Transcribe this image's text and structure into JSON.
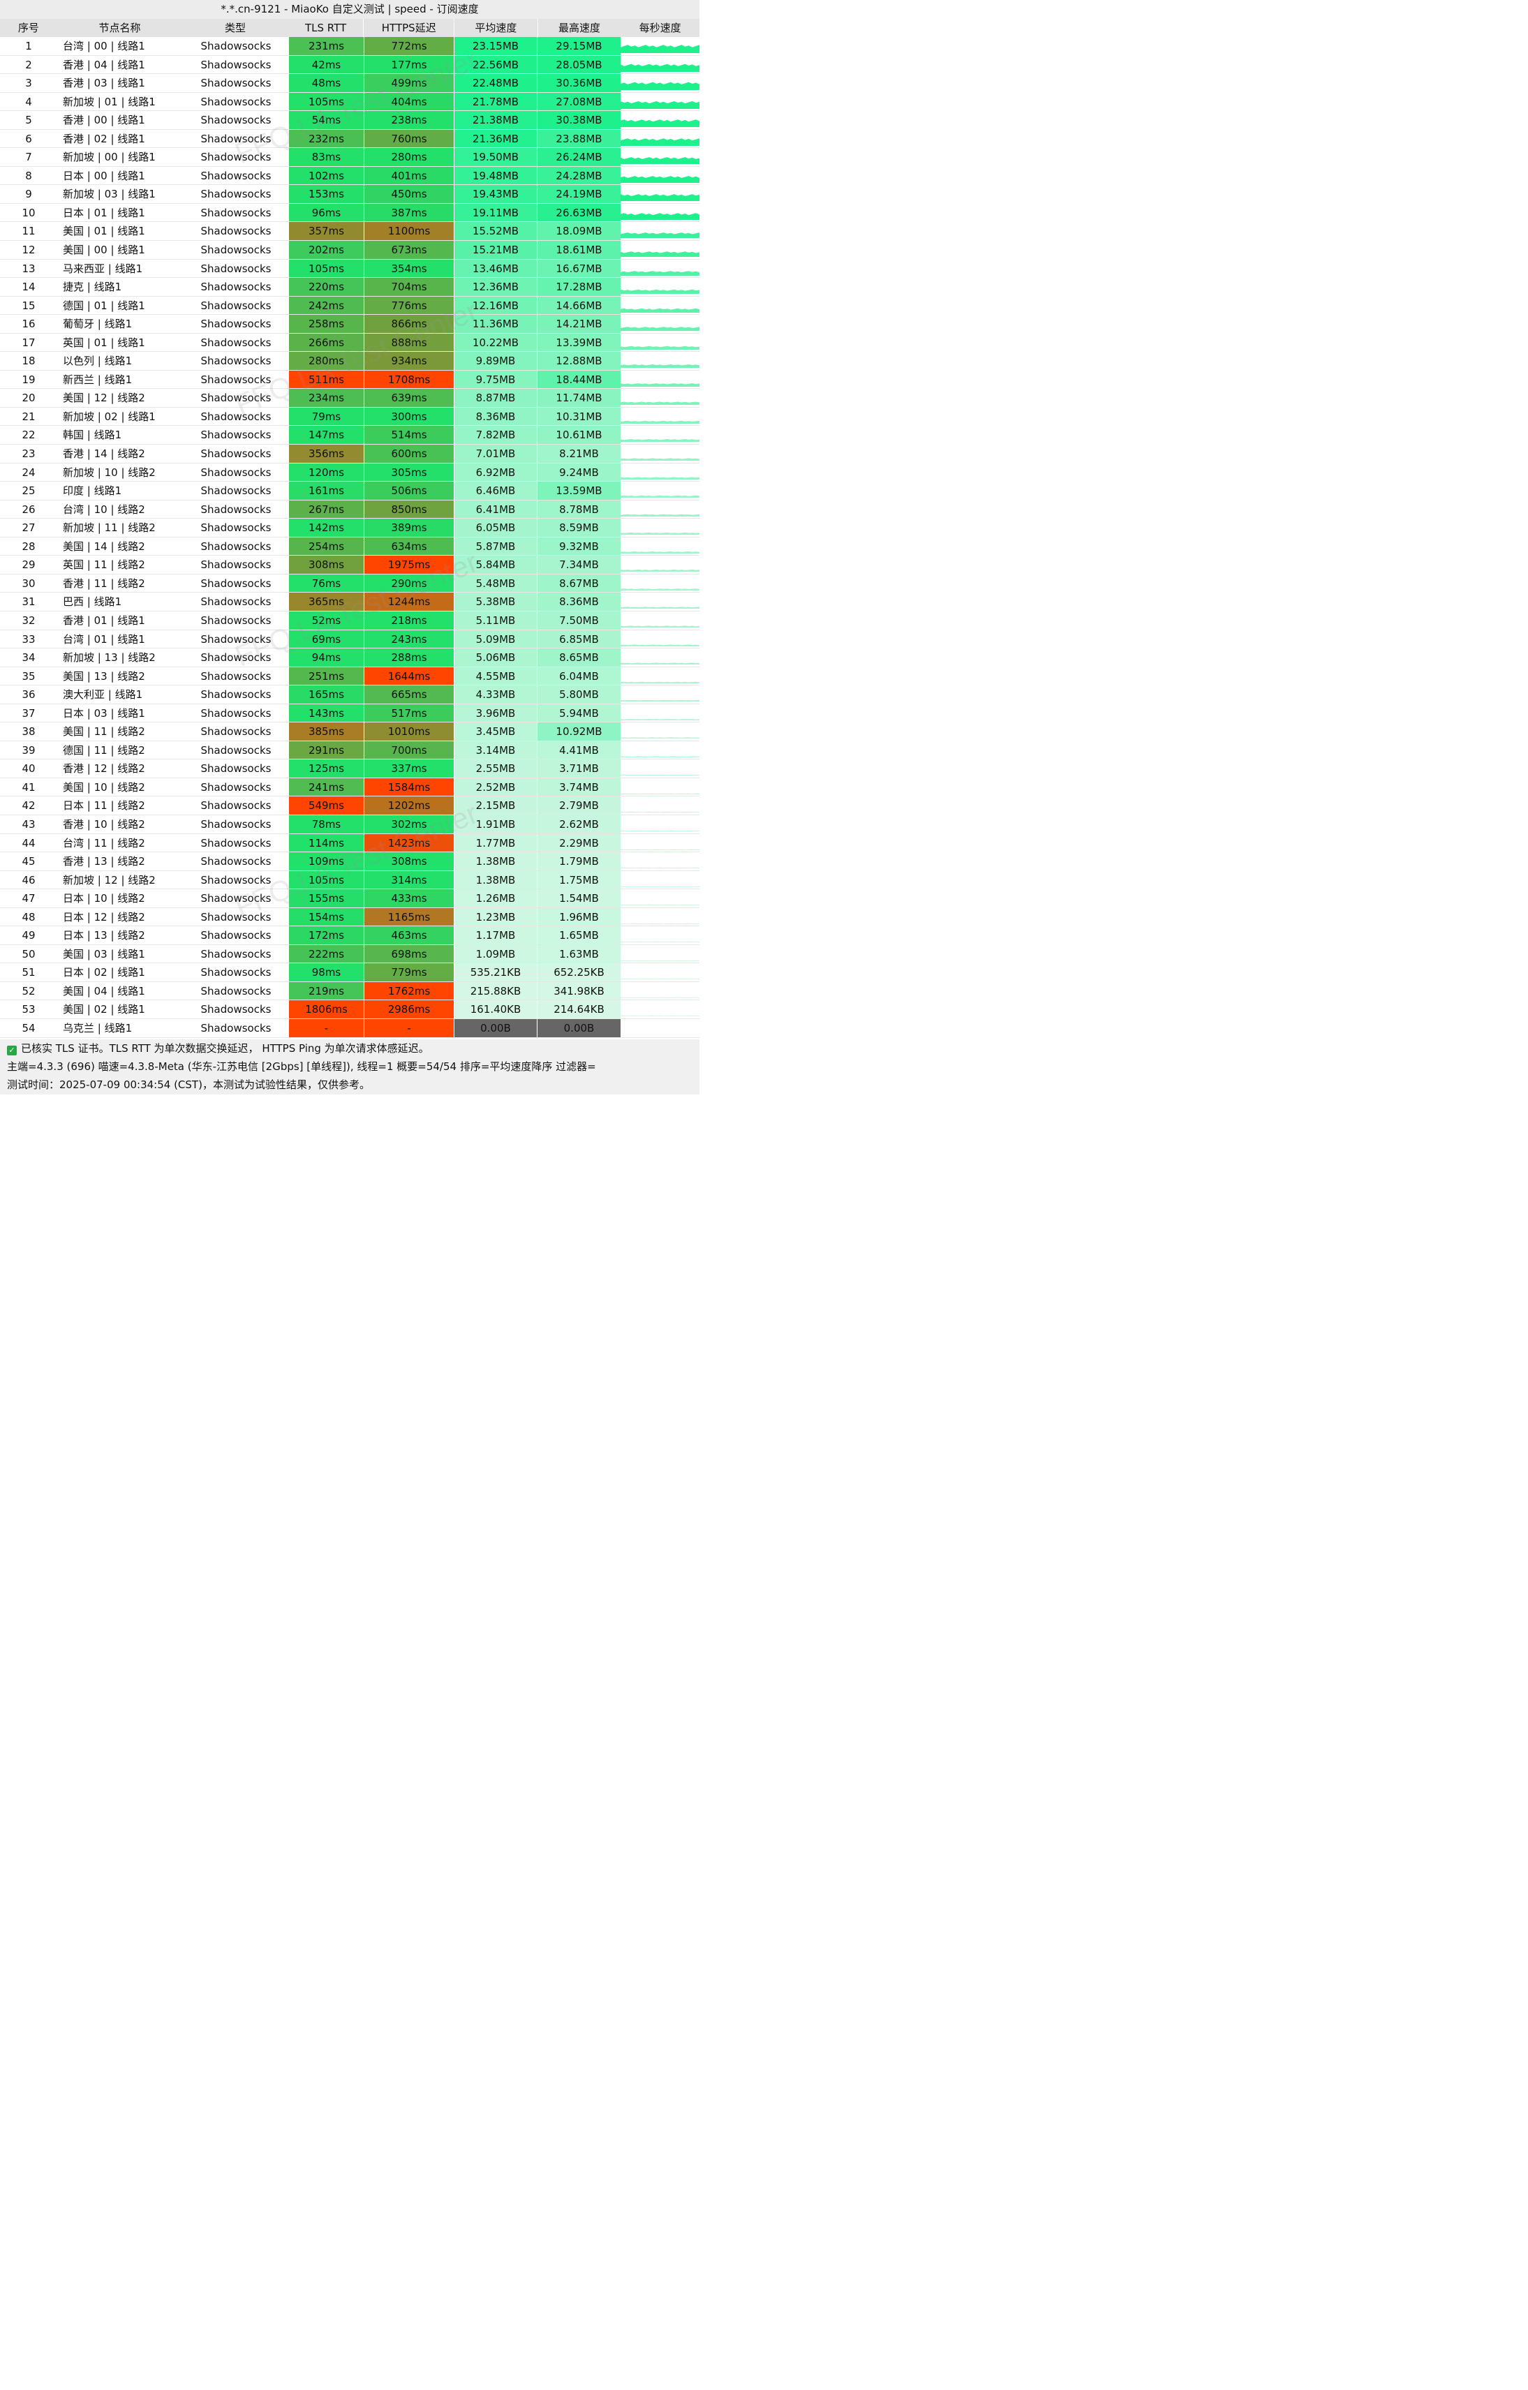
{
  "title": "*.*.cn-9121 - MiaoKo 自定义测试 | speed - 订阅速度",
  "headers": [
    "序号",
    "节点名称",
    "类型",
    "TLS RTT",
    "HTTPS延迟",
    "平均速度",
    "最高速度",
    "每秒速度"
  ],
  "watermark": "FFQ.LA Test Center",
  "rows": [
    {
      "idx": "1",
      "name": "台湾 | 00 | 线路1",
      "type": "Shadowsocks",
      "tls": "231ms",
      "https": "772ms",
      "avg": "23.15MB",
      "max": "29.15MB"
    },
    {
      "idx": "2",
      "name": "香港 | 04 | 线路1",
      "type": "Shadowsocks",
      "tls": "42ms",
      "https": "177ms",
      "avg": "22.56MB",
      "max": "28.05MB"
    },
    {
      "idx": "3",
      "name": "香港 | 03 | 线路1",
      "type": "Shadowsocks",
      "tls": "48ms",
      "https": "499ms",
      "avg": "22.48MB",
      "max": "30.36MB"
    },
    {
      "idx": "4",
      "name": "新加坡 | 01 | 线路1",
      "type": "Shadowsocks",
      "tls": "105ms",
      "https": "404ms",
      "avg": "21.78MB",
      "max": "27.08MB"
    },
    {
      "idx": "5",
      "name": "香港 | 00 | 线路1",
      "type": "Shadowsocks",
      "tls": "54ms",
      "https": "238ms",
      "avg": "21.38MB",
      "max": "30.38MB"
    },
    {
      "idx": "6",
      "name": "香港 | 02 | 线路1",
      "type": "Shadowsocks",
      "tls": "232ms",
      "https": "760ms",
      "avg": "21.36MB",
      "max": "23.88MB"
    },
    {
      "idx": "7",
      "name": "新加坡 | 00 | 线路1",
      "type": "Shadowsocks",
      "tls": "83ms",
      "https": "280ms",
      "avg": "19.50MB",
      "max": "26.24MB"
    },
    {
      "idx": "8",
      "name": "日本 | 00 | 线路1",
      "type": "Shadowsocks",
      "tls": "102ms",
      "https": "401ms",
      "avg": "19.48MB",
      "max": "24.28MB"
    },
    {
      "idx": "9",
      "name": "新加坡 | 03 | 线路1",
      "type": "Shadowsocks",
      "tls": "153ms",
      "https": "450ms",
      "avg": "19.43MB",
      "max": "24.19MB"
    },
    {
      "idx": "10",
      "name": "日本 | 01 | 线路1",
      "type": "Shadowsocks",
      "tls": "96ms",
      "https": "387ms",
      "avg": "19.11MB",
      "max": "26.63MB"
    },
    {
      "idx": "11",
      "name": "美国 | 01 | 线路1",
      "type": "Shadowsocks",
      "tls": "357ms",
      "https": "1100ms",
      "avg": "15.52MB",
      "max": "18.09MB"
    },
    {
      "idx": "12",
      "name": "美国 | 00 | 线路1",
      "type": "Shadowsocks",
      "tls": "202ms",
      "https": "673ms",
      "avg": "15.21MB",
      "max": "18.61MB"
    },
    {
      "idx": "13",
      "name": "马来西亚 | 线路1",
      "type": "Shadowsocks",
      "tls": "105ms",
      "https": "354ms",
      "avg": "13.46MB",
      "max": "16.67MB"
    },
    {
      "idx": "14",
      "name": "捷克 | 线路1",
      "type": "Shadowsocks",
      "tls": "220ms",
      "https": "704ms",
      "avg": "12.36MB",
      "max": "17.28MB"
    },
    {
      "idx": "15",
      "name": "德国 | 01 | 线路1",
      "type": "Shadowsocks",
      "tls": "242ms",
      "https": "776ms",
      "avg": "12.16MB",
      "max": "14.66MB"
    },
    {
      "idx": "16",
      "name": "葡萄牙 | 线路1",
      "type": "Shadowsocks",
      "tls": "258ms",
      "https": "866ms",
      "avg": "11.36MB",
      "max": "14.21MB"
    },
    {
      "idx": "17",
      "name": "英国 | 01 | 线路1",
      "type": "Shadowsocks",
      "tls": "266ms",
      "https": "888ms",
      "avg": "10.22MB",
      "max": "13.39MB"
    },
    {
      "idx": "18",
      "name": "以色列 | 线路1",
      "type": "Shadowsocks",
      "tls": "280ms",
      "https": "934ms",
      "avg": "9.89MB",
      "max": "12.88MB"
    },
    {
      "idx": "19",
      "name": "新西兰 | 线路1",
      "type": "Shadowsocks",
      "tls": "511ms",
      "https": "1708ms",
      "avg": "9.75MB",
      "max": "18.44MB"
    },
    {
      "idx": "20",
      "name": "美国 | 12 | 线路2",
      "type": "Shadowsocks",
      "tls": "234ms",
      "https": "639ms",
      "avg": "8.87MB",
      "max": "11.74MB"
    },
    {
      "idx": "21",
      "name": "新加坡 | 02 | 线路1",
      "type": "Shadowsocks",
      "tls": "79ms",
      "https": "300ms",
      "avg": "8.36MB",
      "max": "10.31MB"
    },
    {
      "idx": "22",
      "name": "韩国 | 线路1",
      "type": "Shadowsocks",
      "tls": "147ms",
      "https": "514ms",
      "avg": "7.82MB",
      "max": "10.61MB"
    },
    {
      "idx": "23",
      "name": "香港 | 14 | 线路2",
      "type": "Shadowsocks",
      "tls": "356ms",
      "https": "600ms",
      "avg": "7.01MB",
      "max": "8.21MB"
    },
    {
      "idx": "24",
      "name": "新加坡 | 10 | 线路2",
      "type": "Shadowsocks",
      "tls": "120ms",
      "https": "305ms",
      "avg": "6.92MB",
      "max": "9.24MB"
    },
    {
      "idx": "25",
      "name": "印度 | 线路1",
      "type": "Shadowsocks",
      "tls": "161ms",
      "https": "506ms",
      "avg": "6.46MB",
      "max": "13.59MB"
    },
    {
      "idx": "26",
      "name": "台湾 | 10 | 线路2",
      "type": "Shadowsocks",
      "tls": "267ms",
      "https": "850ms",
      "avg": "6.41MB",
      "max": "8.78MB"
    },
    {
      "idx": "27",
      "name": "新加坡 | 11 | 线路2",
      "type": "Shadowsocks",
      "tls": "142ms",
      "https": "389ms",
      "avg": "6.05MB",
      "max": "8.59MB"
    },
    {
      "idx": "28",
      "name": "美国 | 14 | 线路2",
      "type": "Shadowsocks",
      "tls": "254ms",
      "https": "634ms",
      "avg": "5.87MB",
      "max": "9.32MB"
    },
    {
      "idx": "29",
      "name": "英国 | 11 | 线路2",
      "type": "Shadowsocks",
      "tls": "308ms",
      "https": "1975ms",
      "avg": "5.84MB",
      "max": "7.34MB"
    },
    {
      "idx": "30",
      "name": "香港 | 11 | 线路2",
      "type": "Shadowsocks",
      "tls": "76ms",
      "https": "290ms",
      "avg": "5.48MB",
      "max": "8.67MB"
    },
    {
      "idx": "31",
      "name": "巴西 | 线路1",
      "type": "Shadowsocks",
      "tls": "365ms",
      "https": "1244ms",
      "avg": "5.38MB",
      "max": "8.36MB"
    },
    {
      "idx": "32",
      "name": "香港 | 01 | 线路1",
      "type": "Shadowsocks",
      "tls": "52ms",
      "https": "218ms",
      "avg": "5.11MB",
      "max": "7.50MB"
    },
    {
      "idx": "33",
      "name": "台湾 | 01 | 线路1",
      "type": "Shadowsocks",
      "tls": "69ms",
      "https": "243ms",
      "avg": "5.09MB",
      "max": "6.85MB"
    },
    {
      "idx": "34",
      "name": "新加坡 | 13 | 线路2",
      "type": "Shadowsocks",
      "tls": "94ms",
      "https": "288ms",
      "avg": "5.06MB",
      "max": "8.65MB"
    },
    {
      "idx": "35",
      "name": "美国 | 13 | 线路2",
      "type": "Shadowsocks",
      "tls": "251ms",
      "https": "1644ms",
      "avg": "4.55MB",
      "max": "6.04MB"
    },
    {
      "idx": "36",
      "name": "澳大利亚 | 线路1",
      "type": "Shadowsocks",
      "tls": "165ms",
      "https": "665ms",
      "avg": "4.33MB",
      "max": "5.80MB"
    },
    {
      "idx": "37",
      "name": "日本 | 03 | 线路1",
      "type": "Shadowsocks",
      "tls": "143ms",
      "https": "517ms",
      "avg": "3.96MB",
      "max": "5.94MB"
    },
    {
      "idx": "38",
      "name": "美国 | 11 | 线路2",
      "type": "Shadowsocks",
      "tls": "385ms",
      "https": "1010ms",
      "avg": "3.45MB",
      "max": "10.92MB"
    },
    {
      "idx": "39",
      "name": "德国 | 11 | 线路2",
      "type": "Shadowsocks",
      "tls": "291ms",
      "https": "700ms",
      "avg": "3.14MB",
      "max": "4.41MB"
    },
    {
      "idx": "40",
      "name": "香港 | 12 | 线路2",
      "type": "Shadowsocks",
      "tls": "125ms",
      "https": "337ms",
      "avg": "2.55MB",
      "max": "3.71MB"
    },
    {
      "idx": "41",
      "name": "美国 | 10 | 线路2",
      "type": "Shadowsocks",
      "tls": "241ms",
      "https": "1584ms",
      "avg": "2.52MB",
      "max": "3.74MB"
    },
    {
      "idx": "42",
      "name": "日本 | 11 | 线路2",
      "type": "Shadowsocks",
      "tls": "549ms",
      "https": "1202ms",
      "avg": "2.15MB",
      "max": "2.79MB"
    },
    {
      "idx": "43",
      "name": "香港 | 10 | 线路2",
      "type": "Shadowsocks",
      "tls": "78ms",
      "https": "302ms",
      "avg": "1.91MB",
      "max": "2.62MB"
    },
    {
      "idx": "44",
      "name": "台湾 | 11 | 线路2",
      "type": "Shadowsocks",
      "tls": "114ms",
      "https": "1423ms",
      "avg": "1.77MB",
      "max": "2.29MB"
    },
    {
      "idx": "45",
      "name": "香港 | 13 | 线路2",
      "type": "Shadowsocks",
      "tls": "109ms",
      "https": "308ms",
      "avg": "1.38MB",
      "max": "1.79MB"
    },
    {
      "idx": "46",
      "name": "新加坡 | 12 | 线路2",
      "type": "Shadowsocks",
      "tls": "105ms",
      "https": "314ms",
      "avg": "1.38MB",
      "max": "1.75MB"
    },
    {
      "idx": "47",
      "name": "日本 | 10 | 线路2",
      "type": "Shadowsocks",
      "tls": "155ms",
      "https": "433ms",
      "avg": "1.26MB",
      "max": "1.54MB"
    },
    {
      "idx": "48",
      "name": "日本 | 12 | 线路2",
      "type": "Shadowsocks",
      "tls": "154ms",
      "https": "1165ms",
      "avg": "1.23MB",
      "max": "1.96MB"
    },
    {
      "idx": "49",
      "name": "日本 | 13 | 线路2",
      "type": "Shadowsocks",
      "tls": "172ms",
      "https": "463ms",
      "avg": "1.17MB",
      "max": "1.65MB"
    },
    {
      "idx": "50",
      "name": "美国 | 03 | 线路1",
      "type": "Shadowsocks",
      "tls": "222ms",
      "https": "698ms",
      "avg": "1.09MB",
      "max": "1.63MB"
    },
    {
      "idx": "51",
      "name": "日本 | 02 | 线路1",
      "type": "Shadowsocks",
      "tls": "98ms",
      "https": "779ms",
      "avg": "535.21KB",
      "max": "652.25KB"
    },
    {
      "idx": "52",
      "name": "美国 | 04 | 线路1",
      "type": "Shadowsocks",
      "tls": "219ms",
      "https": "1762ms",
      "avg": "215.88KB",
      "max": "341.98KB"
    },
    {
      "idx": "53",
      "name": "美国 | 02 | 线路1",
      "type": "Shadowsocks",
      "tls": "1806ms",
      "https": "2986ms",
      "avg": "161.40KB",
      "max": "214.64KB"
    },
    {
      "idx": "54",
      "name": "乌克兰 | 线路1",
      "type": "Shadowsocks",
      "tls": "-",
      "https": "-",
      "avg": "0.00B",
      "max": "0.00B"
    }
  ],
  "footer": {
    "line1": "已核实 TLS 证书。TLS RTT 为单次数据交换延迟， HTTPS Ping 为单次请求体感延迟。",
    "line2": "主端=4.3.3 (696) 喵速=4.3.8-Meta (华东-江苏电信 [2Gbps] [单线程]), 线程=1 概要=54/54 排序=平均速度降序 过滤器=",
    "line3": "测试时间：2025-07-09 00:34:54 (CST)，本测试为试验性结果，仅供参考。"
  },
  "colors": {
    "header_bg": "#e3e3e3",
    "title_bg": "#ececec",
    "good": "#22e06a",
    "mid": "#7a9a3a",
    "bad": "#ff4500",
    "speed_high": "#1ef08c",
    "speed_low": "#d7f7e6",
    "dead": "#666666"
  }
}
